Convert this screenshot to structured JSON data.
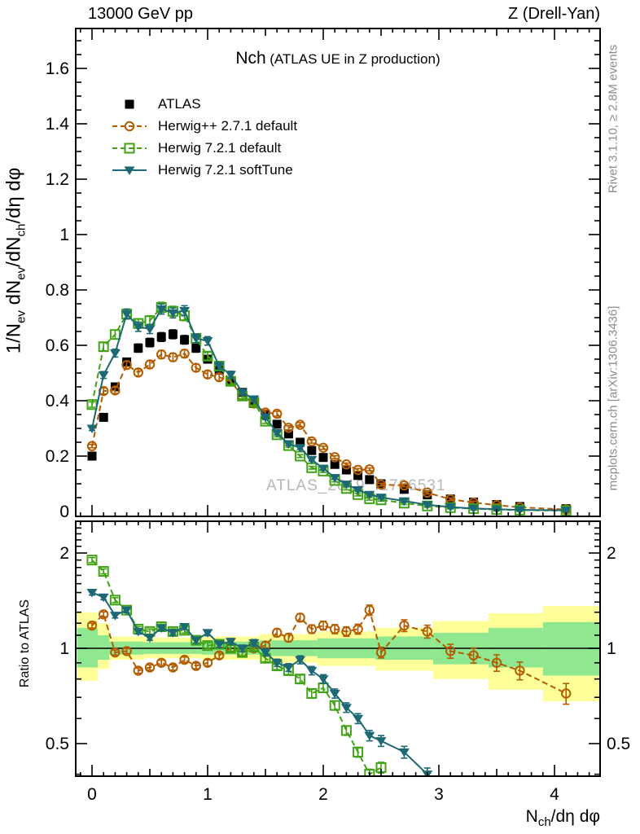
{
  "header": {
    "left": "13000 GeV pp",
    "right": "Z (Drell-Yan)"
  },
  "right_margin": {
    "top_note": "Rivet 3.1.10, ≥ 2.8M events",
    "bottom_note": "mcplots.cern.ch [arXiv:1306.3436]"
  },
  "watermark": "ATLAS_2019_I1736531",
  "main_panel": {
    "title_main": "Nch",
    "title_paren": "(ATLAS UE in Z production)",
    "ylabel_segments": [
      {
        "t": "1/N"
      },
      {
        "sub": "ev"
      },
      {
        "t": " dN"
      },
      {
        "sub": "ev"
      },
      {
        "t": "/dN"
      },
      {
        "sub": "ch"
      },
      {
        "t": "/dη dφ"
      }
    ],
    "yticks": [
      {
        "v": 0,
        "label": "0"
      },
      {
        "v": 0.2,
        "label": "0.2"
      },
      {
        "v": 0.4,
        "label": "0.4"
      },
      {
        "v": 0.6,
        "label": "0.6"
      },
      {
        "v": 0.8,
        "label": "0.8"
      },
      {
        "v": 1,
        "label": "1"
      },
      {
        "v": 1.2,
        "label": "1.2"
      },
      {
        "v": 1.4,
        "label": "1.4"
      },
      {
        "v": 1.6,
        "label": "1.6"
      }
    ]
  },
  "ratio_panel": {
    "ylabel": "Ratio to ATLAS",
    "yticks": [
      {
        "v": 0.5,
        "label": "0.5"
      },
      {
        "v": 1,
        "label": "1"
      },
      {
        "v": 2,
        "label": "2"
      }
    ]
  },
  "xaxis": {
    "ticks": [
      {
        "v": 0,
        "label": "0"
      },
      {
        "v": 1,
        "label": "1"
      },
      {
        "v": 2,
        "label": "2"
      },
      {
        "v": 3,
        "label": "3"
      },
      {
        "v": 4,
        "label": "4"
      }
    ],
    "label_segments": [
      {
        "t": "N"
      },
      {
        "sub": "ch"
      },
      {
        "t": "/dη dφ"
      }
    ]
  },
  "legend": {
    "items": [
      {
        "label": "ATLAS",
        "icon": "square-filled-marker-icon",
        "marker": "square-filled",
        "line": "none",
        "color": "#000000"
      },
      {
        "label": "Herwig++ 2.7.1 default",
        "icon": "circle-open-marker-icon",
        "marker": "circle-open",
        "line": "dashed",
        "color": "#b35c00"
      },
      {
        "label": "Herwig 7.2.1 default",
        "icon": "square-open-marker-icon",
        "marker": "square-open",
        "line": "dashed",
        "color": "#3fa315"
      },
      {
        "label": "Herwig 7.2.1 softTune",
        "icon": "triangle-down-marker-icon",
        "marker": "triangle-down-filled",
        "line": "solid",
        "color": "#1c6875"
      }
    ]
  },
  "colors": {
    "band_yellow": "#ffff99",
    "band_green": "#8fe88f",
    "note_gray": "#8c8c8c",
    "watermark_gray": "#b8b8b8"
  },
  "chart_data": [
    {
      "type": "line",
      "panel": "main",
      "title": "Nch (ATLAS UE in Z production)",
      "xlabel": "N_ch/dη dφ",
      "ylabel": "1/N_ev dN_ev/dN_ch/dη dφ",
      "xlim": [
        -0.13,
        4.39
      ],
      "ylim": [
        0,
        1.744
      ],
      "x": [
        0,
        0.1,
        0.2,
        0.3,
        0.4,
        0.5,
        0.6,
        0.7,
        0.8,
        0.9,
        1.0,
        1.1,
        1.2,
        1.3,
        1.4,
        1.5,
        1.6,
        1.7,
        1.8,
        1.9,
        2.0,
        2.1,
        2.2,
        2.3,
        2.4,
        2.5,
        2.7,
        2.9,
        3.1,
        3.3,
        3.5,
        3.7,
        4.1
      ],
      "series": [
        {
          "name": "ATLAS",
          "marker": "square-filled",
          "line": "none",
          "color": "#000000",
          "values": [
            0.2,
            0.34,
            0.45,
            0.54,
            0.59,
            0.61,
            0.63,
            0.64,
            0.62,
            0.59,
            0.55,
            0.51,
            0.47,
            0.43,
            0.39,
            0.35,
            0.315,
            0.28,
            0.25,
            0.22,
            0.195,
            0.17,
            0.15,
            0.13,
            0.115,
            0.1,
            0.08,
            0.06,
            0.045,
            0.034,
            0.025,
            0.018,
            0.01
          ]
        },
        {
          "name": "Herwig++ 2.7.1 default",
          "marker": "circle-open",
          "line": "dashed",
          "color": "#b35c00",
          "values": [
            0.236,
            0.435,
            0.437,
            0.529,
            0.502,
            0.531,
            0.567,
            0.557,
            0.57,
            0.519,
            0.495,
            0.485,
            0.47,
            0.417,
            0.39,
            0.357,
            0.353,
            0.302,
            0.313,
            0.253,
            0.23,
            0.196,
            0.17,
            0.15,
            0.152,
            0.097,
            0.094,
            0.068,
            0.044,
            0.032,
            0.023,
            0.015,
            0.007
          ]
        },
        {
          "name": "Herwig 7.2.1 default",
          "marker": "square-open",
          "line": "dashed",
          "color": "#3fa315",
          "values": [
            0.386,
            0.595,
            0.639,
            0.713,
            0.679,
            0.689,
            0.737,
            0.723,
            0.707,
            0.625,
            0.561,
            0.525,
            0.47,
            0.417,
            0.394,
            0.326,
            0.277,
            0.238,
            0.2,
            0.158,
            0.146,
            0.112,
            0.083,
            0.061,
            0.046,
            0.042,
            0.03,
            0.02,
            0.014,
            0.01,
            0.007,
            0.005,
            0.003
          ]
        },
        {
          "name": "Herwig 7.2.1 softTune",
          "marker": "triangle-down-filled",
          "line": "solid",
          "color": "#1c6875",
          "values": [
            0.3,
            0.493,
            0.572,
            0.713,
            0.667,
            0.659,
            0.731,
            0.717,
            0.725,
            0.625,
            0.616,
            0.525,
            0.494,
            0.43,
            0.406,
            0.34,
            0.284,
            0.244,
            0.23,
            0.187,
            0.156,
            0.122,
            0.098,
            0.078,
            0.061,
            0.051,
            0.038,
            0.024,
            0.016,
            0.011,
            0.008,
            0.006,
            0.004
          ]
        }
      ]
    },
    {
      "type": "ratio",
      "panel": "ratio",
      "ylabel": "Ratio to ATLAS",
      "yscale": "log",
      "xlim": [
        -0.13,
        4.39
      ],
      "ylim": [
        0.39,
        2.49
      ],
      "x": [
        0,
        0.1,
        0.2,
        0.3,
        0.4,
        0.5,
        0.6,
        0.7,
        0.8,
        0.9,
        1.0,
        1.1,
        1.2,
        1.3,
        1.4,
        1.5,
        1.6,
        1.7,
        1.8,
        1.9,
        2.0,
        2.1,
        2.2,
        2.3,
        2.4,
        2.5,
        2.7,
        2.9,
        3.1,
        3.3,
        3.5,
        3.7,
        4.1
      ],
      "series": [
        {
          "name": "Herwig++ 2.7.1 default",
          "marker": "circle-open",
          "line": "dashed",
          "color": "#b35c00",
          "values": [
            1.18,
            1.28,
            0.97,
            0.98,
            0.85,
            0.87,
            0.9,
            0.87,
            0.92,
            0.88,
            0.9,
            0.95,
            1.0,
            0.97,
            1.0,
            1.02,
            1.12,
            1.08,
            1.25,
            1.15,
            1.18,
            1.15,
            1.13,
            1.15,
            1.32,
            0.97,
            1.18,
            1.13,
            0.98,
            0.95,
            0.9,
            0.85,
            0.72
          ]
        },
        {
          "name": "Herwig 7.2.1 default",
          "marker": "square-open",
          "line": "dashed",
          "color": "#3fa315",
          "values": [
            1.9,
            1.75,
            1.42,
            1.32,
            1.15,
            1.13,
            1.17,
            1.13,
            1.14,
            1.06,
            1.02,
            1.03,
            1.0,
            0.97,
            1.01,
            0.93,
            0.88,
            0.85,
            0.8,
            0.72,
            0.75,
            0.66,
            0.55,
            0.47,
            0.4,
            0.42,
            null,
            null,
            null,
            null,
            null,
            null,
            null
          ]
        },
        {
          "name": "Herwig 7.2.1 softTune",
          "marker": "triangle-down-filled",
          "line": "solid",
          "color": "#1c6875",
          "values": [
            1.5,
            1.45,
            1.27,
            1.32,
            1.13,
            1.08,
            1.16,
            1.12,
            1.17,
            1.06,
            1.12,
            1.03,
            1.05,
            1.0,
            1.04,
            0.97,
            0.9,
            0.87,
            0.92,
            0.85,
            0.8,
            0.72,
            0.65,
            0.6,
            0.53,
            0.51,
            0.47,
            0.4,
            null,
            null,
            null,
            null,
            null
          ]
        }
      ],
      "bands": {
        "outer_color": "#ffff99",
        "inner_color": "#8fe88f",
        "steps": [
          {
            "x0": -0.13,
            "x1": 0.05,
            "ylo": 0.79,
            "yhi": 1.3,
            "glo": 0.87,
            "ghi": 1.16
          },
          {
            "x0": 0.05,
            "x1": 0.15,
            "ylo": 0.86,
            "yhi": 1.2,
            "glo": 0.92,
            "ghi": 1.1
          },
          {
            "x0": 0.15,
            "x1": 0.45,
            "ylo": 0.92,
            "yhi": 1.09,
            "glo": 0.955,
            "ghi": 1.05
          },
          {
            "x0": 0.45,
            "x1": 0.95,
            "ylo": 0.93,
            "yhi": 1.08,
            "glo": 0.96,
            "ghi": 1.045
          },
          {
            "x0": 0.95,
            "x1": 1.45,
            "ylo": 0.92,
            "yhi": 1.09,
            "glo": 0.955,
            "ghi": 1.05
          },
          {
            "x0": 1.45,
            "x1": 1.95,
            "ylo": 0.9,
            "yhi": 1.11,
            "glo": 0.945,
            "ghi": 1.06
          },
          {
            "x0": 1.95,
            "x1": 2.45,
            "ylo": 0.88,
            "yhi": 1.13,
            "glo": 0.93,
            "ghi": 1.075
          },
          {
            "x0": 2.45,
            "x1": 2.95,
            "ylo": 0.85,
            "yhi": 1.16,
            "glo": 0.92,
            "ghi": 1.09
          },
          {
            "x0": 2.95,
            "x1": 3.43,
            "ylo": 0.8,
            "yhi": 1.22,
            "glo": 0.89,
            "ghi": 1.12
          },
          {
            "x0": 3.43,
            "x1": 3.9,
            "ylo": 0.74,
            "yhi": 1.29,
            "glo": 0.87,
            "ghi": 1.16
          },
          {
            "x0": 3.9,
            "x1": 4.39,
            "ylo": 0.68,
            "yhi": 1.36,
            "glo": 0.82,
            "ghi": 1.21
          }
        ]
      }
    }
  ]
}
